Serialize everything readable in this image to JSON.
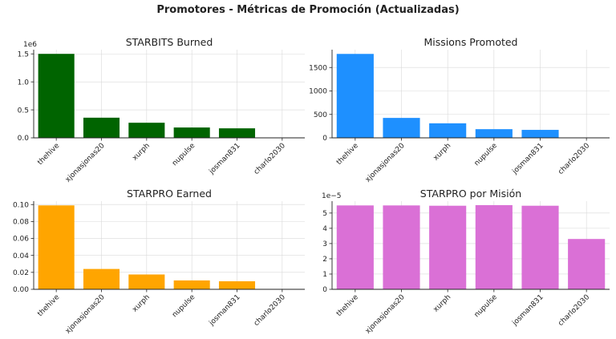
{
  "title": "Promotores - Métricas de Promoción (Actualizadas)",
  "chart_data": [
    {
      "type": "bar",
      "title": "STARBITS Burned",
      "categories": [
        "thehive",
        "xjonasjonas20",
        "xurph",
        "nupulse",
        "josman831",
        "charlo2030"
      ],
      "values": [
        1500000,
        360000,
        270000,
        185000,
        170000,
        0
      ],
      "ylim": [
        0,
        1575000
      ],
      "yticks": [
        0,
        500000,
        1000000,
        1500000
      ],
      "ytick_labels": [
        "0.0",
        "0.5",
        "1.0",
        "1.5"
      ],
      "offset_label": "1e6",
      "color": "#006400",
      "grid": true
    },
    {
      "type": "bar",
      "title": "Missions Promoted",
      "categories": [
        "thehive",
        "xjonasjonas20",
        "xurph",
        "nupulse",
        "josman831",
        "charlo2030"
      ],
      "values": [
        1790,
        425,
        310,
        185,
        170,
        5
      ],
      "ylim": [
        0,
        1880
      ],
      "yticks": [
        0,
        500,
        1000,
        1500
      ],
      "ytick_labels": [
        "0",
        "500",
        "1000",
        "1500"
      ],
      "offset_label": "",
      "color": "#1E90FF",
      "grid": true
    },
    {
      "type": "bar",
      "title": "STARPRO Earned",
      "categories": [
        "thehive",
        "xjonasjonas20",
        "xurph",
        "nupulse",
        "josman831",
        "charlo2030"
      ],
      "values": [
        0.099,
        0.024,
        0.0175,
        0.0105,
        0.0095,
        0
      ],
      "ylim": [
        0,
        0.104
      ],
      "yticks": [
        0,
        0.02,
        0.04,
        0.06,
        0.08,
        0.1
      ],
      "ytick_labels": [
        "0.00",
        "0.02",
        "0.04",
        "0.06",
        "0.08",
        "0.10"
      ],
      "offset_label": "",
      "color": "#FFA500",
      "grid": true
    },
    {
      "type": "bar",
      "title": "STARPRO por Misión",
      "categories": [
        "thehive",
        "xjonasjonas20",
        "xurph",
        "nupulse",
        "josman831",
        "charlo2030"
      ],
      "values": [
        5.5e-05,
        5.5e-05,
        5.48e-05,
        5.52e-05,
        5.48e-05,
        3.3e-05
      ],
      "ylim": [
        0,
        5.78e-05
      ],
      "yticks": [
        0,
        1e-05,
        2e-05,
        3e-05,
        4e-05,
        5e-05
      ],
      "ytick_labels": [
        "0",
        "1",
        "2",
        "3",
        "4",
        "5"
      ],
      "offset_label": "1e−5",
      "color": "#DA70D6",
      "grid": true
    }
  ]
}
